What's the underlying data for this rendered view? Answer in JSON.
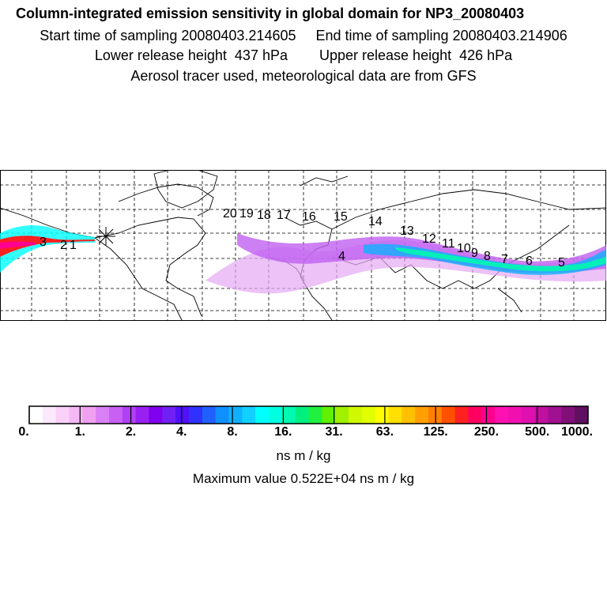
{
  "header": {
    "title": "Column-integrated emission sensitivity in global domain for NP3_20080403",
    "line2": "Start time of sampling 20080403.214605     End time of sampling 20080403.214906",
    "line3": "Lower release height  437 hPa        Upper release height  426 hPa",
    "line4": "Aerosol tracer used, meteorological data are from GFS"
  },
  "map": {
    "trajectory_labels": [
      "20",
      "19",
      "18",
      "17",
      "16",
      "15",
      "14",
      "13",
      "12",
      "11",
      "10",
      "9",
      "8",
      "7",
      "6",
      "5",
      "4",
      "3",
      "2",
      "1"
    ],
    "release_marker": "asterisk-marker"
  },
  "colorbar": {
    "tick_labels": [
      "0.",
      "1.",
      "2.",
      "4.",
      "8.",
      "16.",
      "31.",
      "63.",
      "125.",
      "250.",
      "500.",
      "1000."
    ],
    "colors": [
      "#ffffff",
      "#fce8fc",
      "#f8d0f8",
      "#f4b8f4",
      "#efa0ef",
      "#d880f4",
      "#c860f4",
      "#b040f4",
      "#9820f0",
      "#8000f0",
      "#7020f4",
      "#5010f8",
      "#3030ff",
      "#2060ff",
      "#1090ff",
      "#10b0ff",
      "#10d0ff",
      "#00ffff",
      "#00ffe0",
      "#00f8b0",
      "#00f080",
      "#20f040",
      "#60f000",
      "#a0f000",
      "#d0f800",
      "#e0ff00",
      "#ffff00",
      "#ffe000",
      "#ffc000",
      "#ffa000",
      "#ff8000",
      "#ff5000",
      "#ff2020",
      "#ff0060",
      "#ff0090",
      "#ff10b0",
      "#f010b0",
      "#e010b0",
      "#c010a0",
      "#a01090",
      "#801078",
      "#601060"
    ],
    "unit": "ns m / kg"
  },
  "max_value_text": "Maximum value  0.522E+04 ns m / kg"
}
